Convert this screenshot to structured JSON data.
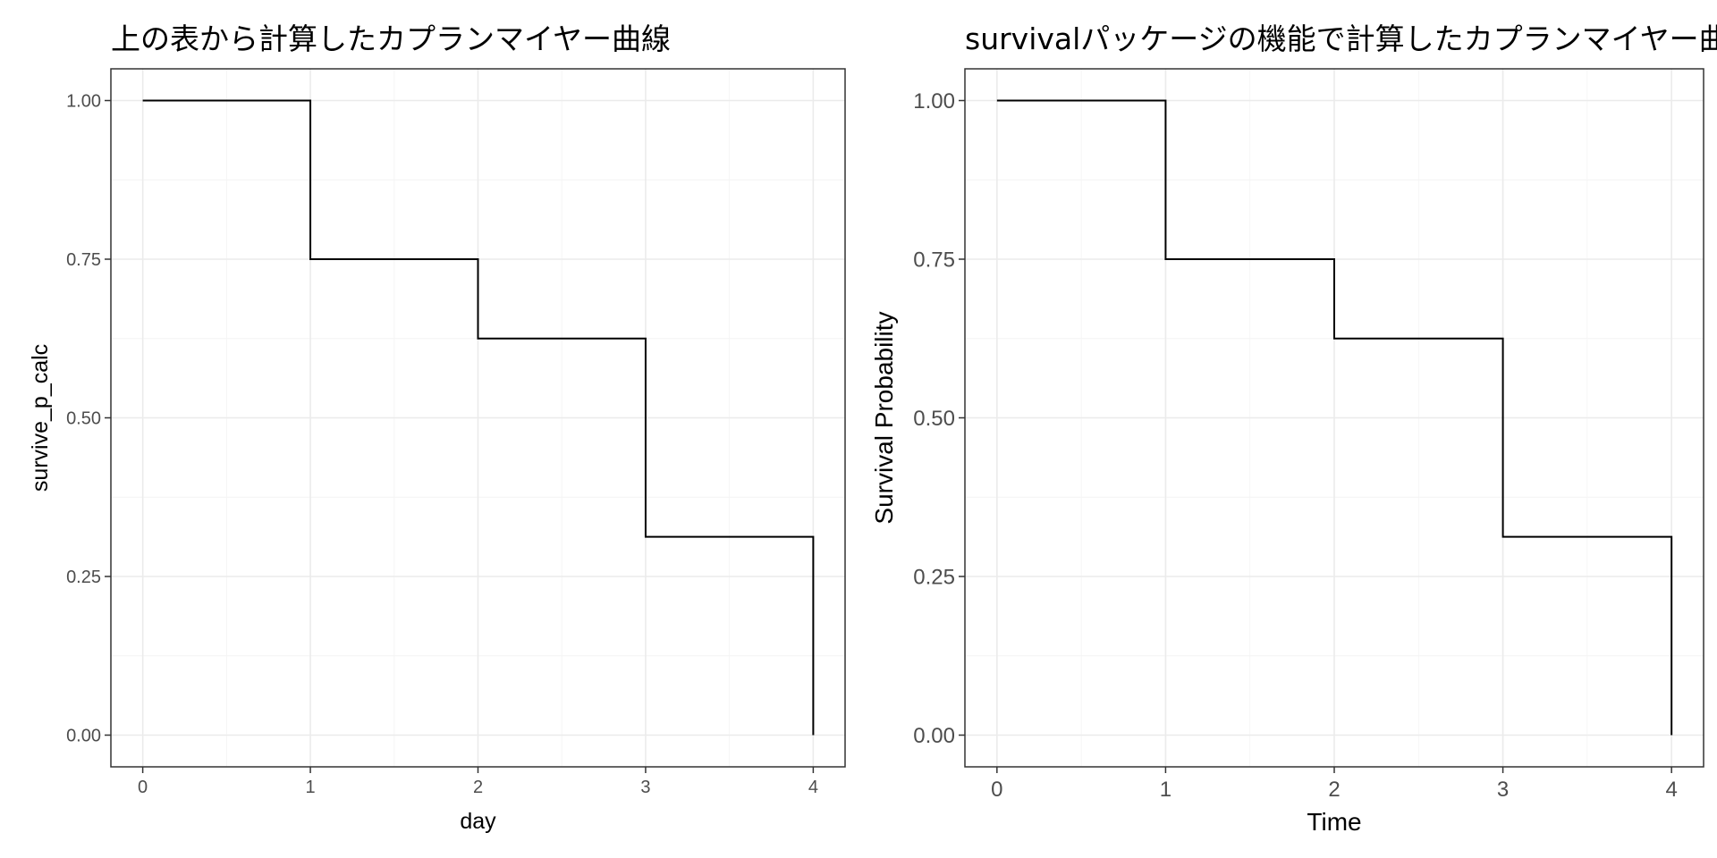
{
  "colors": {
    "background": "#ffffff",
    "grid": "#ebebeb",
    "border": "#333333",
    "line": "#000000",
    "tick_text": "#4d4d4d"
  },
  "chart_data": [
    {
      "type": "line",
      "step": true,
      "title": "上の表から計算したカプランマイヤー曲線",
      "xlabel": "day",
      "ylabel": "survive_p_calc",
      "xlim": [
        -0.19,
        4.19
      ],
      "ylim": [
        -0.05,
        1.05
      ],
      "x_ticks": [
        0,
        1,
        2,
        3,
        4
      ],
      "y_ticks": [
        0,
        0.25,
        0.5,
        0.75,
        1.0
      ],
      "x_tick_labels": [
        "0",
        "1",
        "2",
        "3",
        "4"
      ],
      "y_tick_labels": [
        "0.00",
        "0.25",
        "0.50",
        "0.75",
        "1.00"
      ],
      "grid": true,
      "x": [
        0,
        1,
        2,
        3,
        4
      ],
      "y": [
        1.0,
        0.75,
        0.625,
        0.3125,
        0.0
      ]
    },
    {
      "type": "line",
      "step": true,
      "title": "survivalパッケージの機能で計算したカプランマイヤー曲線",
      "xlabel": "Time",
      "ylabel": "Survival Probability",
      "xlim": [
        -0.19,
        4.19
      ],
      "ylim": [
        -0.05,
        1.05
      ],
      "x_ticks": [
        0,
        1,
        2,
        3,
        4
      ],
      "y_ticks": [
        0,
        0.25,
        0.5,
        0.75,
        1.0
      ],
      "x_tick_labels": [
        "0",
        "1",
        "2",
        "3",
        "4"
      ],
      "y_tick_labels": [
        "0.00",
        "0.25",
        "0.50",
        "0.75",
        "1.00"
      ],
      "grid": true,
      "x": [
        0,
        1,
        2,
        3,
        4
      ],
      "y": [
        1.0,
        0.75,
        0.625,
        0.3125,
        0.0
      ]
    }
  ]
}
